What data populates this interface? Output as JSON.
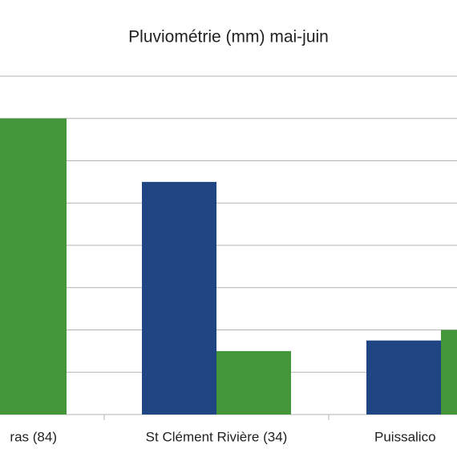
{
  "chart_data": {
    "type": "bar",
    "title": "Pluviométrie (mm) mai-juin",
    "categories": [
      "ras (84)",
      "St Clément Rivière (34)",
      "Puissalico"
    ],
    "series": [
      {
        "color": "#1f4582",
        "values": [
          null,
          5.5,
          1.75
        ]
      },
      {
        "color": "#43963a",
        "values": [
          7,
          1.5,
          2
        ]
      }
    ],
    "ylim": [
      0,
      8
    ],
    "yticks": [
      0,
      1,
      2,
      3,
      4,
      5,
      6,
      7,
      8
    ],
    "grid": true
  }
}
